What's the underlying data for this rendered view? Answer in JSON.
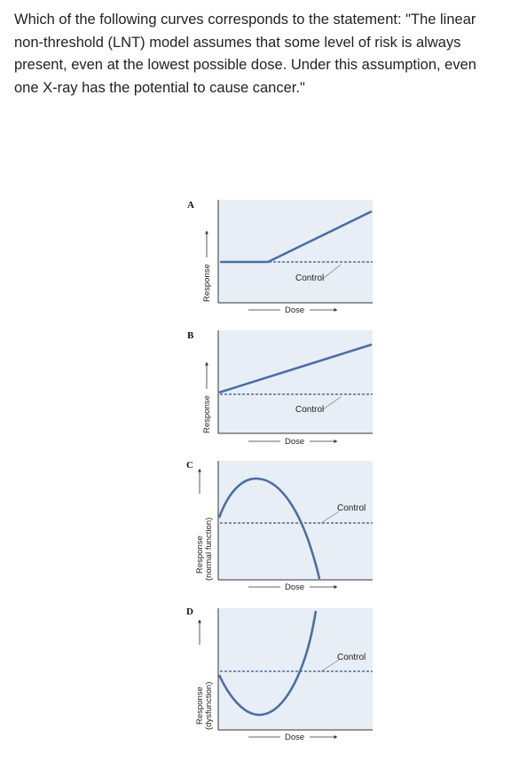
{
  "question": {
    "text": "Which of the following curves corresponds to the statement: \"The linear non-threshold (LNT) model assumes that some level of risk is always present, even at the lowest possible dose. Under this assumption, even one X-ray has the potential to cause cancer.\""
  },
  "figure": {
    "panels": [
      {
        "letter": "A",
        "ylabel": "Response",
        "ylabel2": "",
        "xlabel": "Dose",
        "control_label": "Control"
      },
      {
        "letter": "B",
        "ylabel": "Response",
        "ylabel2": "",
        "xlabel": "Dose",
        "control_label": "Control"
      },
      {
        "letter": "C",
        "ylabel": "Response",
        "ylabel2": "(normal function)",
        "xlabel": "Dose",
        "control_label": "Control"
      },
      {
        "letter": "D",
        "ylabel": "Response",
        "ylabel2": "(dysfunction)",
        "xlabel": "Dose",
        "control_label": "Control"
      }
    ],
    "colors": {
      "plot_bg": "#e8eef5",
      "curve": "#4a6fa5",
      "axis": "#333333",
      "control_line": "#4a6fa5"
    }
  }
}
